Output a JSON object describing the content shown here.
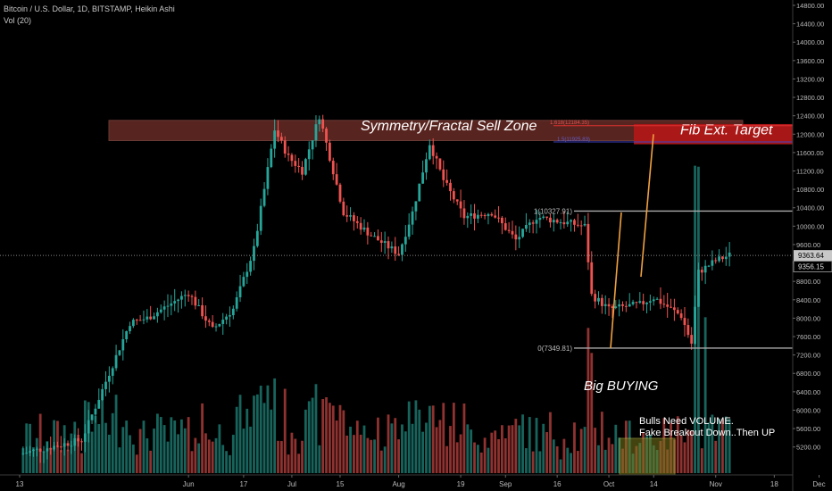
{
  "header": {
    "title": "Bitcoin / U.S. Dollar, 1D, BITSTAMP, Heikin Ashi",
    "indicator": "Vol (20)"
  },
  "colors": {
    "up": "#26a69a",
    "down": "#ef5350",
    "background": "#000000",
    "price_line": "#888888",
    "sell_zone": "#a0423a",
    "target_zone": "#b01818",
    "trend_line": "#f0a040",
    "volume_box": "#7a7a1e"
  },
  "chart_data": {
    "type": "candlestick",
    "series_style": "Heikin Ashi",
    "ylim": [
      5000,
      14800
    ],
    "grid": false,
    "price_axis_ticks": [
      "14800.00",
      "14400.00",
      "14000.00",
      "13600.00",
      "13200.00",
      "12800.00",
      "12400.00",
      "12000.00",
      "11600.00",
      "11200.00",
      "10800.00",
      "10400.00",
      "10000.00",
      "9600.00",
      "9200.00",
      "8800.00",
      "8400.00",
      "8000.00",
      "7600.00",
      "7200.00",
      "6800.00",
      "6400.00",
      "6000.00",
      "5600.00",
      "5200.00"
    ],
    "time_axis_labels": [
      "13",
      "Jun",
      "17",
      "Jul",
      "15",
      "Aug",
      "19",
      "Sep",
      "16",
      "Oct",
      "14",
      "Nov",
      "18",
      "Dec"
    ],
    "price_labels": {
      "last_price": "9363.64",
      "mark_price": "9356.15"
    },
    "candle_x_range": [
      "2019-04-13",
      "2019-11-05"
    ],
    "price_path": [
      [
        "2019-04-13",
        5050
      ],
      [
        "2019-05-01",
        5350
      ],
      [
        "2019-05-15",
        7900
      ],
      [
        "2019-05-20",
        8000
      ],
      [
        "2019-06-01",
        8550
      ],
      [
        "2019-06-08",
        7750
      ],
      [
        "2019-06-14",
        8200
      ],
      [
        "2019-06-20",
        9500
      ],
      [
        "2019-06-26",
        12100
      ],
      [
        "2019-06-30",
        11500
      ],
      [
        "2019-07-04",
        11200
      ],
      [
        "2019-07-09",
        12400
      ],
      [
        "2019-07-16",
        10300
      ],
      [
        "2019-07-24",
        9800
      ],
      [
        "2019-08-01",
        9400
      ],
      [
        "2019-08-05",
        10300
      ],
      [
        "2019-08-10",
        11800
      ],
      [
        "2019-08-14",
        11000
      ],
      [
        "2019-08-20",
        10200
      ],
      [
        "2019-08-28",
        10300
      ],
      [
        "2019-09-04",
        9700
      ],
      [
        "2019-09-10",
        10200
      ],
      [
        "2019-09-24",
        10000
      ],
      [
        "2019-09-26",
        8500
      ],
      [
        "2019-10-01",
        8200
      ],
      [
        "2019-10-10",
        8300
      ],
      [
        "2019-10-14",
        8450
      ],
      [
        "2019-10-22",
        8050
      ],
      [
        "2019-10-25",
        7450
      ],
      [
        "2019-10-27",
        9000
      ],
      [
        "2019-11-01",
        9250
      ],
      [
        "2019-11-05",
        9370
      ]
    ],
    "annotations": {
      "sell_zone": {
        "label": "Symmetry/Fractal Sell Zone",
        "price_from": 11860,
        "price_to": 12300
      },
      "fib_target": {
        "label": "Fib Ext. Target",
        "price_from": 11780,
        "price_to": 12220
      },
      "fib_ext_levels": [
        "1.618(12184.35)",
        "1.5(11925.83)"
      ],
      "fib_level_1": {
        "label": "1(10327.91)",
        "price": 10327.91
      },
      "fib_level_0": {
        "label": "0(7349.81)",
        "price": 7349.81
      },
      "big_buying": "Big BUYING",
      "volume_note_line1": "Bulls Need VOLUME.",
      "volume_note_line2": "Fake Breakout Down..Then UP"
    }
  }
}
